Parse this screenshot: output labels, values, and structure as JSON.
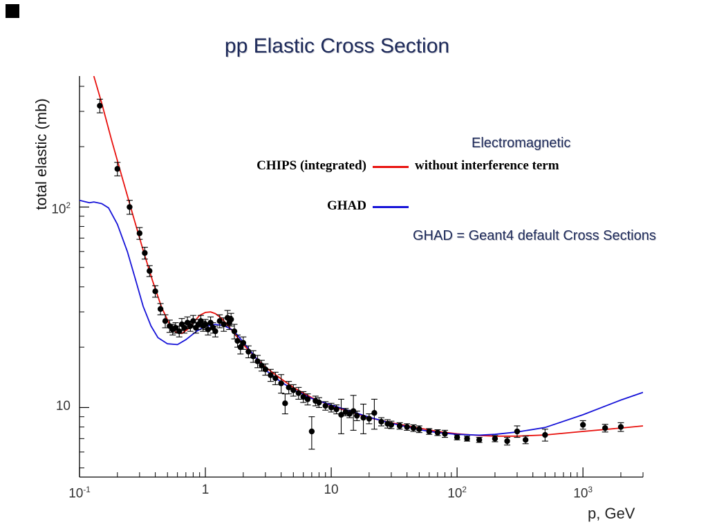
{
  "colors": {
    "chips": "#e8100c",
    "ghad": "#1512d8",
    "data_points": "#000000",
    "axis": "#000000",
    "tick_text": "#333333",
    "heading_text": "#1d2a5a"
  },
  "chart_data": {
    "type": "line+scatter",
    "title": "pp Elastic Cross Section",
    "grid": false,
    "legend": {
      "electromagnetic_heading": "Electromagnetic",
      "chips_label": "CHIPS (integrated)",
      "chips_desc": "without interference term",
      "ghad_label": "GHAD",
      "note": "GHAD = Geant4 default Cross Sections"
    },
    "x_axis": {
      "label": "p, GeV",
      "scale": "log",
      "min": 0.1,
      "max": 3000,
      "ticks": [
        {
          "value": 0.1,
          "base": "10",
          "sup": "-1"
        },
        {
          "value": 1,
          "base": "1",
          "sup": ""
        },
        {
          "value": 10,
          "base": "10",
          "sup": ""
        },
        {
          "value": 100,
          "base": "10",
          "sup": "2"
        },
        {
          "value": 1000,
          "base": "10",
          "sup": "3"
        }
      ]
    },
    "y_axis": {
      "label": "total elastic (mb)",
      "scale": "log",
      "min": 4.5,
      "max": 450,
      "ticks": [
        {
          "value": 10,
          "base": "10",
          "sup": ""
        },
        {
          "value": 100,
          "base": "10",
          "sup": "2"
        }
      ]
    },
    "series": [
      {
        "name": "CHIPS (integrated) — Electromagnetic without interference term",
        "type": "line",
        "color": "#e8100c",
        "points": [
          [
            0.13,
            450
          ],
          [
            0.15,
            330
          ],
          [
            0.18,
            215
          ],
          [
            0.22,
            138
          ],
          [
            0.27,
            88
          ],
          [
            0.32,
            61
          ],
          [
            0.38,
            43
          ],
          [
            0.45,
            31.5
          ],
          [
            0.52,
            26
          ],
          [
            0.58,
            23.8
          ],
          [
            0.65,
            23.4
          ],
          [
            0.72,
            24.5
          ],
          [
            0.8,
            26.5
          ],
          [
            0.9,
            28.8
          ],
          [
            1.0,
            29.8
          ],
          [
            1.1,
            30
          ],
          [
            1.2,
            29.4
          ],
          [
            1.35,
            27.8
          ],
          [
            1.5,
            25.8
          ],
          [
            1.7,
            23.4
          ],
          [
            2.0,
            20.6
          ],
          [
            2.5,
            17.8
          ],
          [
            3.0,
            15.9
          ],
          [
            4.0,
            13.9
          ],
          [
            5.0,
            12.6
          ],
          [
            7.0,
            11.2
          ],
          [
            10,
            10.2
          ],
          [
            15,
            9.4
          ],
          [
            20,
            8.9
          ],
          [
            30,
            8.4
          ],
          [
            50,
            7.9
          ],
          [
            70,
            7.6
          ],
          [
            100,
            7.4
          ],
          [
            150,
            7.25
          ],
          [
            200,
            7.2
          ],
          [
            300,
            7.2
          ],
          [
            500,
            7.3
          ],
          [
            1000,
            7.6
          ],
          [
            2000,
            7.9
          ],
          [
            3000,
            8.1
          ]
        ]
      },
      {
        "name": "GHAD (Geant4 default Cross Sections)",
        "type": "line",
        "color": "#1512d8",
        "points": [
          [
            0.1,
            108
          ],
          [
            0.12,
            105
          ],
          [
            0.13,
            106
          ],
          [
            0.15,
            104
          ],
          [
            0.17,
            99
          ],
          [
            0.2,
            82
          ],
          [
            0.24,
            60
          ],
          [
            0.28,
            43
          ],
          [
            0.32,
            32
          ],
          [
            0.37,
            25.5
          ],
          [
            0.42,
            22.3
          ],
          [
            0.5,
            20.8
          ],
          [
            0.6,
            20.6
          ],
          [
            0.7,
            21.8
          ],
          [
            0.85,
            24
          ],
          [
            1.0,
            25.4
          ],
          [
            1.2,
            26
          ],
          [
            1.4,
            25.6
          ],
          [
            1.6,
            24.6
          ],
          [
            1.8,
            23
          ],
          [
            2.0,
            21.2
          ],
          [
            2.5,
            17.8
          ],
          [
            3.0,
            15.4
          ],
          [
            4.0,
            13.4
          ],
          [
            5.0,
            12.3
          ],
          [
            7.0,
            11.1
          ],
          [
            10,
            10.3
          ],
          [
            15,
            9.5
          ],
          [
            20,
            8.95
          ],
          [
            30,
            8.35
          ],
          [
            50,
            7.75
          ],
          [
            70,
            7.5
          ],
          [
            100,
            7.35
          ],
          [
            150,
            7.28
          ],
          [
            200,
            7.35
          ],
          [
            300,
            7.55
          ],
          [
            500,
            7.95
          ],
          [
            1000,
            9.2
          ],
          [
            2000,
            10.9
          ],
          [
            3000,
            11.9
          ]
        ]
      },
      {
        "name": "pp elastic data",
        "type": "scatter",
        "color": "#000000",
        "points": [
          [
            0.145,
            320,
            25
          ],
          [
            0.2,
            155,
            12
          ],
          [
            0.25,
            100,
            8
          ],
          [
            0.3,
            74,
            5
          ],
          [
            0.33,
            59,
            4
          ],
          [
            0.36,
            48,
            3
          ],
          [
            0.4,
            38,
            2.5
          ],
          [
            0.44,
            31,
            2
          ],
          [
            0.48,
            27,
            2
          ],
          [
            0.52,
            25.5,
            1.8
          ],
          [
            0.55,
            24.5,
            1.5
          ],
          [
            0.58,
            25,
            1.5
          ],
          [
            0.62,
            24,
            1.5
          ],
          [
            0.65,
            26,
            1.8
          ],
          [
            0.68,
            25,
            1.5
          ],
          [
            0.72,
            26.5,
            1.8
          ],
          [
            0.76,
            25.5,
            1.5
          ],
          [
            0.8,
            27,
            1.8
          ],
          [
            0.84,
            25,
            1.5
          ],
          [
            0.88,
            26,
            1.5
          ],
          [
            0.92,
            27,
            1.8
          ],
          [
            0.96,
            25.5,
            1.5
          ],
          [
            1.0,
            26,
            1.5
          ],
          [
            1.05,
            24.5,
            1.5
          ],
          [
            1.1,
            26.5,
            1.8
          ],
          [
            1.15,
            25,
            1.5
          ],
          [
            1.2,
            24,
            1.5
          ],
          [
            1.3,
            27,
            2
          ],
          [
            1.4,
            26,
            2
          ],
          [
            1.5,
            28,
            2.5
          ],
          [
            1.55,
            26.5,
            2
          ],
          [
            1.6,
            27.5,
            2
          ],
          [
            1.7,
            24,
            2
          ],
          [
            1.8,
            21.5,
            1.5
          ],
          [
            1.9,
            20,
            1.5
          ],
          [
            2.0,
            21,
            1.5
          ],
          [
            2.2,
            19,
            1.3
          ],
          [
            2.4,
            18,
            1.2
          ],
          [
            2.6,
            17,
            1.2
          ],
          [
            2.8,
            16.2,
            1
          ],
          [
            3.0,
            15.5,
            1
          ],
          [
            3.3,
            14.5,
            1
          ],
          [
            3.6,
            14,
            1
          ],
          [
            4.0,
            13.2,
            1.4
          ],
          [
            4.3,
            10.5,
            1.2
          ],
          [
            4.6,
            12.6,
            0.9
          ],
          [
            5.0,
            12.2,
            0.8
          ],
          [
            5.5,
            11.8,
            0.8
          ],
          [
            6.0,
            11.3,
            0.7
          ],
          [
            6.5,
            11,
            0.7
          ],
          [
            7.0,
            7.6,
            1.4
          ],
          [
            7.5,
            10.8,
            0.6
          ],
          [
            8.0,
            10.6,
            0.6
          ],
          [
            9.0,
            10.2,
            0.5
          ],
          [
            10,
            10,
            0.5
          ],
          [
            11,
            9.8,
            0.5
          ],
          [
            12,
            9.2,
            1.8
          ],
          [
            13,
            9.5,
            0.4
          ],
          [
            14,
            9.3,
            0.4
          ],
          [
            15,
            9.6,
            1.9
          ],
          [
            16,
            9.1,
            0.5
          ],
          [
            18,
            8.9,
            1.5
          ],
          [
            20,
            8.8,
            0.5
          ],
          [
            22,
            9.4,
            1.6
          ],
          [
            25,
            8.5,
            0.4
          ],
          [
            28,
            8.3,
            0.4
          ],
          [
            30,
            8.2,
            0.35
          ],
          [
            35,
            8.1,
            0.3
          ],
          [
            40,
            8.0,
            0.3
          ],
          [
            45,
            7.9,
            0.3
          ],
          [
            50,
            7.8,
            0.3
          ],
          [
            60,
            7.6,
            0.25
          ],
          [
            70,
            7.5,
            0.25
          ],
          [
            80,
            7.4,
            0.3
          ],
          [
            100,
            7.1,
            0.2
          ],
          [
            120,
            7.0,
            0.2
          ],
          [
            150,
            6.9,
            0.2
          ],
          [
            200,
            7.0,
            0.25
          ],
          [
            250,
            6.8,
            0.3
          ],
          [
            300,
            7.6,
            0.5
          ],
          [
            350,
            6.9,
            0.3
          ],
          [
            500,
            7.3,
            0.5
          ],
          [
            1000,
            8.2,
            0.4
          ],
          [
            1500,
            7.9,
            0.35
          ],
          [
            2000,
            8.0,
            0.4
          ]
        ]
      }
    ]
  }
}
